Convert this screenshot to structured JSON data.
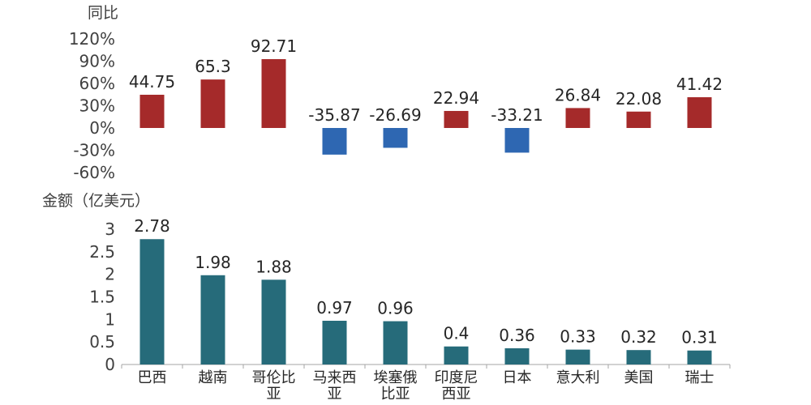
{
  "chart_data": [
    {
      "type": "bar",
      "ylabel": "同比",
      "categories": [
        "巴西",
        "越南",
        "哥伦比亚",
        "马来西亚",
        "埃塞俄比亚",
        "印度尼西亚",
        "日本",
        "意大利",
        "美国",
        "瑞士"
      ],
      "values": [
        44.75,
        65.3,
        92.71,
        -35.87,
        -26.69,
        22.94,
        -33.21,
        26.84,
        22.08,
        41.42
      ],
      "data_labels": [
        "44.75",
        "65.3",
        "92.71",
        "-35.87",
        "-26.69",
        "22.94",
        "-33.21",
        "26.84",
        "22.08",
        "41.42"
      ],
      "ylim": [
        -60,
        120
      ],
      "yticks": [
        -60,
        -30,
        0,
        30,
        60,
        90,
        120
      ],
      "ytick_labels": [
        "-60%",
        "-30%",
        "0%",
        "30%",
        "60%",
        "90%",
        "120%"
      ],
      "colors": {
        "positive": "#A52A2A",
        "negative": "#2E67B2"
      }
    },
    {
      "type": "bar",
      "ylabel": "金额（亿美元）",
      "categories": [
        "巴西",
        "越南",
        "哥伦比亚",
        "马来西亚",
        "埃塞俄比亚",
        "印度尼西亚",
        "日本",
        "意大利",
        "美国",
        "瑞士"
      ],
      "category_lines": [
        [
          "巴西"
        ],
        [
          "越南"
        ],
        [
          "哥伦比",
          "亚"
        ],
        [
          "马来西",
          "亚"
        ],
        [
          "埃塞俄",
          "比亚"
        ],
        [
          "印度尼",
          "西亚"
        ],
        [
          "日本"
        ],
        [
          "意大利"
        ],
        [
          "美国"
        ],
        [
          "瑞士"
        ]
      ],
      "values": [
        2.78,
        1.98,
        1.88,
        0.97,
        0.96,
        0.4,
        0.36,
        0.33,
        0.32,
        0.31
      ],
      "data_labels": [
        "2.78",
        "1.98",
        "1.88",
        "0.97",
        "0.96",
        "0.4",
        "0.36",
        "0.33",
        "0.32",
        "0.31"
      ],
      "ylim": [
        0,
        3
      ],
      "yticks": [
        0,
        0.5,
        1,
        1.5,
        2,
        2.5,
        3
      ],
      "ytick_labels": [
        "0",
        "0.5",
        "1",
        "1.5",
        "2",
        "2.5",
        "3"
      ],
      "colors": {
        "bar": "#266B7A"
      }
    }
  ]
}
